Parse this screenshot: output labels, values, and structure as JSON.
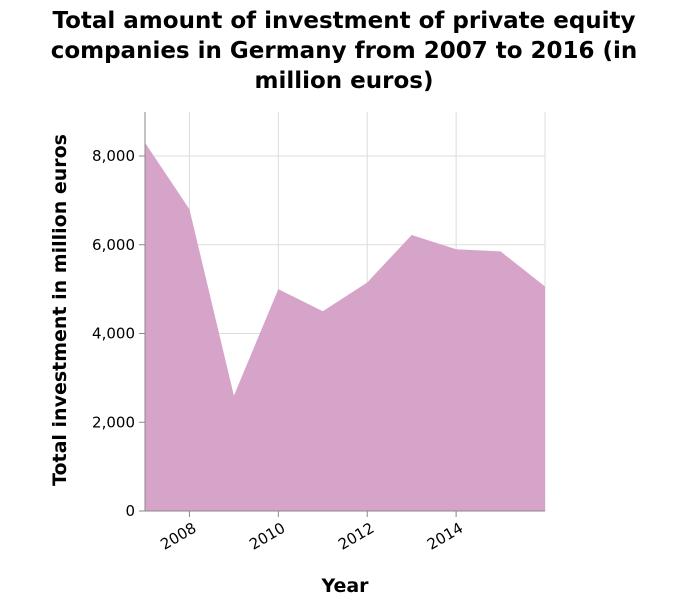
{
  "chart_data": {
    "type": "area",
    "title_lines": [
      "Total amount of investment of private equity",
      "companies in Germany from 2007 to 2016 (in",
      "million euros)"
    ],
    "xlabel": "Year",
    "ylabel": "Total investment in million euros",
    "x": [
      2007,
      2008,
      2009,
      2010,
      2011,
      2012,
      2013,
      2014,
      2015,
      2016
    ],
    "series": [
      {
        "values": [
          8300,
          6800,
          2600,
          5000,
          4500,
          5150,
          6220,
          5900,
          5850,
          5060
        ]
      }
    ],
    "xlim": [
      2007,
      2016
    ],
    "ylim": [
      0,
      8000
    ],
    "x_ticks": [
      2008,
      2010,
      2012,
      2014
    ],
    "x_tick_labels": [
      "2008",
      "2010",
      "2012",
      "2014"
    ],
    "y_ticks": [
      0,
      2000,
      4000,
      6000,
      8000
    ],
    "y_tick_labels": [
      "0",
      "2,000",
      "4,000",
      "6,000",
      "8,000"
    ],
    "grid": true,
    "fill_color": "#d7a4c9",
    "grid_color": "#dddddd"
  }
}
